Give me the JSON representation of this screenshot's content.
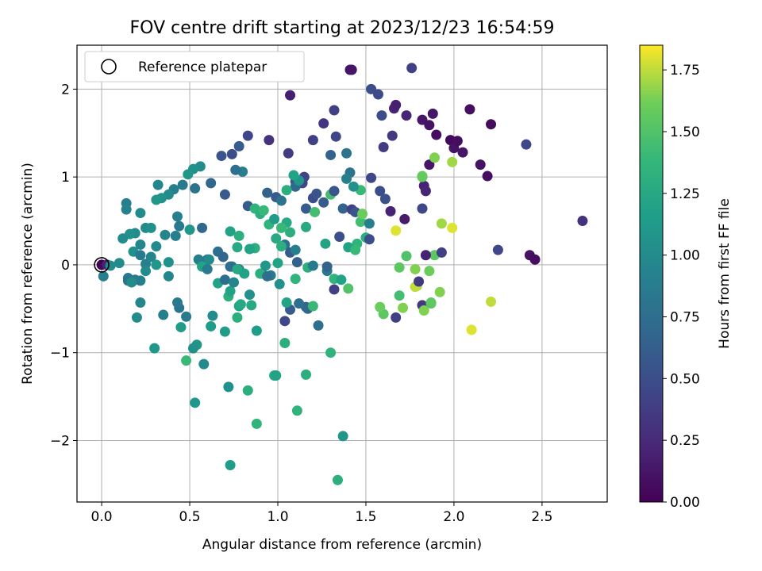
{
  "chart_data": {
    "type": "scatter",
    "title": "FOV centre drift starting at 2023/12/23 16:54:59",
    "xlabel": "Angular distance from reference (arcmin)",
    "ylabel": "Rotation from reference (arcmin)",
    "xlim": [
      -0.14,
      2.87
    ],
    "ylim": [
      -2.7,
      2.5
    ],
    "x_ticks": [
      "0.0",
      "0.5",
      "1.0",
      "1.5",
      "2.0",
      "2.5"
    ],
    "y_ticks": [
      "−2",
      "−1",
      "0",
      "1",
      "2"
    ],
    "grid": true,
    "legend": {
      "entries": [
        "Reference platepar"
      ],
      "position": "top-left"
    },
    "reference_point": {
      "x": 0.0,
      "y": 0.0
    },
    "colorbar": {
      "label": "Hours from first FF file",
      "range": [
        0.0,
        1.85
      ],
      "ticks": [
        "0.00",
        "0.25",
        "0.50",
        "0.75",
        "1.00",
        "1.25",
        "1.50",
        "1.75"
      ],
      "colormap": "viridis"
    },
    "points": [
      [
        0.0,
        0.0,
        0.0
      ],
      [
        1.41,
        2.22,
        0.1
      ],
      [
        1.42,
        2.22,
        0.12
      ],
      [
        1.07,
        1.93,
        0.18
      ],
      [
        1.76,
        2.24,
        0.4
      ],
      [
        1.53,
        2.0,
        0.5
      ],
      [
        1.57,
        1.94,
        0.48
      ],
      [
        1.66,
        1.78,
        0.2
      ],
      [
        1.67,
        1.82,
        0.18
      ],
      [
        1.73,
        1.7,
        0.22
      ],
      [
        1.82,
        1.65,
        0.12
      ],
      [
        1.86,
        1.59,
        0.1
      ],
      [
        1.88,
        1.72,
        0.13
      ],
      [
        1.9,
        1.48,
        0.08
      ],
      [
        1.98,
        1.42,
        0.05
      ],
      [
        2.0,
        1.33,
        0.1
      ],
      [
        2.02,
        1.41,
        0.07
      ],
      [
        2.05,
        1.28,
        0.12
      ],
      [
        2.09,
        1.77,
        0.08
      ],
      [
        2.15,
        1.14,
        0.1
      ],
      [
        2.19,
        1.01,
        0.08
      ],
      [
        2.21,
        1.6,
        0.06
      ],
      [
        1.86,
        1.14,
        0.12
      ],
      [
        1.83,
        0.9,
        0.2
      ],
      [
        1.84,
        0.84,
        0.22
      ],
      [
        1.64,
        0.61,
        0.2
      ],
      [
        1.72,
        0.52,
        0.15
      ],
      [
        1.82,
        0.64,
        0.45
      ],
      [
        1.59,
        1.7,
        0.5
      ],
      [
        1.6,
        1.34,
        0.38
      ],
      [
        1.65,
        1.47,
        0.35
      ],
      [
        1.53,
        0.99,
        0.45
      ],
      [
        1.58,
        0.84,
        0.5
      ],
      [
        1.61,
        0.75,
        0.52
      ],
      [
        1.39,
        1.27,
        0.8
      ],
      [
        1.33,
        1.46,
        0.45
      ],
      [
        1.32,
        1.76,
        0.4
      ],
      [
        1.3,
        1.25,
        0.65
      ],
      [
        1.2,
        1.42,
        0.4
      ],
      [
        1.26,
        1.61,
        0.32
      ],
      [
        1.15,
        1.0,
        0.42
      ],
      [
        1.14,
        0.93,
        0.45
      ],
      [
        1.06,
        1.27,
        0.38
      ],
      [
        1.1,
        0.95,
        0.55
      ],
      [
        0.95,
        1.42,
        0.3
      ],
      [
        0.83,
        1.47,
        0.45
      ],
      [
        0.78,
        1.35,
        0.6
      ],
      [
        0.74,
        1.26,
        0.5
      ],
      [
        0.68,
        1.24,
        0.55
      ],
      [
        0.8,
        1.06,
        0.9
      ],
      [
        0.76,
        1.08,
        0.75
      ],
      [
        0.7,
        0.8,
        0.6
      ],
      [
        0.62,
        0.93,
        0.7
      ],
      [
        0.56,
        1.12,
        1.0
      ],
      [
        0.52,
        1.09,
        1.05
      ],
      [
        0.49,
        1.03,
        1.1
      ],
      [
        0.53,
        0.87,
        0.8
      ],
      [
        0.46,
        0.91,
        0.85
      ],
      [
        0.41,
        0.86,
        0.9
      ],
      [
        0.38,
        0.8,
        1.0
      ],
      [
        0.34,
        0.76,
        1.05
      ],
      [
        0.31,
        0.74,
        1.1
      ],
      [
        0.32,
        0.91,
        0.95
      ],
      [
        0.25,
        0.42,
        1.0
      ],
      [
        0.28,
        0.42,
        1.05
      ],
      [
        0.22,
        0.59,
        1.0
      ],
      [
        0.14,
        0.7,
        0.9
      ],
      [
        0.14,
        0.63,
        0.92
      ],
      [
        0.19,
        0.36,
        1.0
      ],
      [
        0.16,
        0.35,
        1.05
      ],
      [
        0.12,
        0.3,
        1.0
      ],
      [
        0.18,
        0.15,
        1.05
      ],
      [
        0.22,
        0.23,
        0.95
      ],
      [
        0.22,
        0.11,
        0.85
      ],
      [
        0.25,
        0.01,
        0.9
      ],
      [
        0.28,
        0.09,
        0.95
      ],
      [
        0.31,
        0.21,
        1.0
      ],
      [
        0.36,
        0.34,
        0.95
      ],
      [
        0.42,
        0.33,
        0.9
      ],
      [
        0.44,
        0.44,
        0.85
      ],
      [
        0.43,
        0.55,
        0.9
      ],
      [
        0.5,
        0.4,
        1.1
      ],
      [
        0.57,
        0.42,
        0.7
      ],
      [
        0.6,
        0.06,
        0.8
      ],
      [
        0.55,
        0.06,
        0.9
      ],
      [
        0.57,
        -0.02,
        1.2
      ],
      [
        0.66,
        0.15,
        0.75
      ],
      [
        0.69,
        0.09,
        0.7
      ],
      [
        0.73,
        -0.02,
        0.7
      ],
      [
        0.78,
        -0.05,
        0.9
      ],
      [
        0.73,
        0.38,
        1.2
      ],
      [
        0.78,
        0.33,
        1.3
      ],
      [
        0.77,
        0.2,
        1.25
      ],
      [
        0.87,
        0.19,
        1.3
      ],
      [
        0.84,
        0.18,
        1.2
      ],
      [
        0.83,
        0.67,
        0.6
      ],
      [
        0.87,
        0.64,
        1.35
      ],
      [
        0.9,
        0.58,
        1.3
      ],
      [
        0.92,
        0.62,
        1.4
      ],
      [
        0.95,
        0.46,
        1.35
      ],
      [
        0.94,
        0.82,
        0.65
      ],
      [
        0.99,
        0.77,
        0.6
      ],
      [
        1.02,
        0.73,
        0.8
      ],
      [
        1.05,
        0.48,
        1.25
      ],
      [
        1.07,
        0.37,
        1.3
      ],
      [
        1.02,
        0.42,
        1.4
      ],
      [
        0.98,
        0.52,
        1.15
      ],
      [
        0.99,
        0.3,
        1.25
      ],
      [
        1.04,
        0.23,
        0.75
      ],
      [
        1.07,
        0.14,
        0.6
      ],
      [
        1.11,
        0.03,
        0.65
      ],
      [
        1.1,
        0.89,
        0.7
      ],
      [
        1.12,
        0.96,
        1.1
      ],
      [
        1.09,
        1.02,
        1.2
      ],
      [
        1.05,
        0.85,
        1.3
      ],
      [
        1.16,
        0.64,
        0.6
      ],
      [
        1.2,
        0.76,
        0.5
      ],
      [
        1.22,
        0.81,
        0.55
      ],
      [
        1.26,
        0.71,
        0.6
      ],
      [
        1.3,
        0.8,
        1.45
      ],
      [
        1.32,
        0.84,
        0.55
      ],
      [
        1.37,
        0.64,
        0.65
      ],
      [
        1.42,
        0.63,
        0.4
      ],
      [
        1.41,
        1.05,
        0.8
      ],
      [
        1.39,
        0.98,
        0.9
      ],
      [
        1.44,
        0.6,
        0.55
      ],
      [
        1.47,
        0.49,
        1.45
      ],
      [
        1.52,
        0.47,
        0.9
      ],
      [
        1.47,
        0.85,
        1.4
      ],
      [
        1.43,
        0.89,
        1.05
      ],
      [
        1.48,
        0.58,
        1.6
      ],
      [
        1.5,
        0.31,
        1.3
      ],
      [
        1.52,
        0.29,
        0.5
      ],
      [
        1.45,
        0.24,
        1.35
      ],
      [
        1.4,
        0.2,
        1.2
      ],
      [
        1.35,
        0.32,
        0.5
      ],
      [
        1.27,
        0.24,
        1.2
      ],
      [
        1.21,
        0.6,
        1.45
      ],
      [
        1.16,
        0.43,
        1.25
      ],
      [
        1.1,
        0.17,
        0.9
      ],
      [
        1.02,
        0.21,
        1.3
      ],
      [
        1.0,
        0.02,
        1.2
      ],
      [
        0.93,
        -0.01,
        1.1
      ],
      [
        0.91,
        -0.1,
        0.95
      ],
      [
        0.96,
        -0.12,
        0.85
      ],
      [
        1.01,
        -0.22,
        1.05
      ],
      [
        1.1,
        -0.16,
        1.35
      ],
      [
        1.17,
        -0.03,
        1.3
      ],
      [
        1.2,
        -0.01,
        0.85
      ],
      [
        1.28,
        -0.07,
        0.85
      ],
      [
        1.32,
        -0.16,
        1.35
      ],
      [
        1.36,
        -0.17,
        1.2
      ],
      [
        1.4,
        -0.27,
        1.5
      ],
      [
        1.32,
        -0.28,
        0.4
      ],
      [
        1.44,
        0.17,
        1.4
      ],
      [
        1.6,
        -0.56,
        1.55
      ],
      [
        1.58,
        -0.48,
        1.6
      ],
      [
        1.67,
        -0.6,
        0.4
      ],
      [
        1.69,
        -0.35,
        1.45
      ],
      [
        1.71,
        -0.49,
        1.65
      ],
      [
        1.73,
        0.1,
        1.5
      ],
      [
        1.69,
        -0.03,
        1.55
      ],
      [
        1.78,
        -0.05,
        1.65
      ],
      [
        1.79,
        -0.24,
        1.7
      ],
      [
        1.78,
        -0.25,
        1.75
      ],
      [
        1.8,
        -0.19,
        0.35
      ],
      [
        1.82,
        -0.46,
        0.35
      ],
      [
        1.83,
        -0.52,
        1.65
      ],
      [
        1.86,
        -0.07,
        1.6
      ],
      [
        1.87,
        -0.44,
        1.5
      ],
      [
        1.87,
        -0.43,
        1.55
      ],
      [
        1.89,
        0.11,
        1.55
      ],
      [
        1.92,
        -0.31,
        1.65
      ],
      [
        1.93,
        0.47,
        1.7
      ],
      [
        1.89,
        1.22,
        1.65
      ],
      [
        1.82,
        1.01,
        1.6
      ],
      [
        1.82,
        1.0,
        1.58
      ],
      [
        1.99,
        1.17,
        1.7
      ],
      [
        1.99,
        0.42,
        1.8
      ],
      [
        1.67,
        0.39,
        1.8
      ],
      [
        1.84,
        0.11,
        0.2
      ],
      [
        1.93,
        0.14,
        0.4
      ],
      [
        2.21,
        -0.42,
        1.75
      ],
      [
        2.1,
        -0.74,
        1.8
      ],
      [
        2.25,
        0.17,
        0.45
      ],
      [
        2.41,
        1.37,
        0.45
      ],
      [
        2.43,
        0.11,
        0.1
      ],
      [
        2.46,
        0.06,
        0.08
      ],
      [
        2.73,
        0.5,
        0.3
      ],
      [
        1.37,
        -1.95,
        1.1
      ],
      [
        1.34,
        -2.45,
        1.3
      ],
      [
        1.23,
        -0.69,
        0.75
      ],
      [
        1.16,
        -0.48,
        0.65
      ],
      [
        1.17,
        -0.5,
        0.7
      ],
      [
        1.2,
        -0.47,
        1.4
      ],
      [
        1.12,
        -0.44,
        0.75
      ],
      [
        1.07,
        -0.51,
        0.6
      ],
      [
        1.05,
        -0.43,
        1.2
      ],
      [
        1.04,
        -0.64,
        0.45
      ],
      [
        1.04,
        -0.89,
        1.3
      ],
      [
        0.98,
        -1.26,
        1.25
      ],
      [
        0.99,
        -1.26,
        1.2
      ],
      [
        1.16,
        -1.25,
        1.3
      ],
      [
        1.11,
        -1.66,
        1.35
      ],
      [
        1.3,
        -1.0,
        1.35
      ],
      [
        0.88,
        -0.75,
        1.15
      ],
      [
        0.85,
        -0.46,
        1.25
      ],
      [
        0.84,
        -0.34,
        1.05
      ],
      [
        0.78,
        -0.47,
        1.2
      ],
      [
        0.79,
        -0.45,
        1.25
      ],
      [
        0.72,
        -0.36,
        1.3
      ],
      [
        0.73,
        -0.3,
        1.2
      ],
      [
        0.77,
        -0.6,
        1.3
      ],
      [
        0.7,
        -0.76,
        1.15
      ],
      [
        0.62,
        -0.7,
        1.15
      ],
      [
        0.63,
        -0.58,
        1.0
      ],
      [
        0.58,
        -1.13,
        1.0
      ],
      [
        0.54,
        -0.91,
        1.1
      ],
      [
        0.52,
        -0.95,
        1.05
      ],
      [
        0.48,
        -1.09,
        1.4
      ],
      [
        0.53,
        -1.57,
        1.1
      ],
      [
        0.45,
        -0.71,
        1.15
      ],
      [
        0.44,
        -0.49,
        0.8
      ],
      [
        0.43,
        -0.43,
        0.85
      ],
      [
        0.48,
        -0.59,
        0.85
      ],
      [
        0.35,
        -0.57,
        0.9
      ],
      [
        0.3,
        -0.95,
        1.1
      ],
      [
        0.22,
        -0.43,
        0.95
      ],
      [
        0.22,
        -0.18,
        0.9
      ],
      [
        0.19,
        -0.17,
        0.85
      ],
      [
        0.15,
        -0.15,
        0.85
      ],
      [
        0.15,
        -0.18,
        0.8
      ],
      [
        0.17,
        -0.2,
        1.0
      ],
      [
        0.2,
        -0.6,
        1.0
      ],
      [
        0.25,
        -0.07,
        1.0
      ],
      [
        0.31,
        0.0,
        1.1
      ],
      [
        0.38,
        0.03,
        1.05
      ],
      [
        0.38,
        -0.13,
        0.95
      ],
      [
        0.6,
        -0.05,
        0.85
      ],
      [
        0.61,
        0.06,
        1.0
      ],
      [
        0.66,
        -0.21,
        1.2
      ],
      [
        0.7,
        -0.17,
        0.75
      ],
      [
        0.74,
        -0.02,
        0.75
      ],
      [
        0.75,
        -0.2,
        0.95
      ],
      [
        0.77,
        -0.05,
        1.25
      ],
      [
        0.81,
        -0.1,
        1.2
      ],
      [
        0.9,
        -0.1,
        1.3
      ],
      [
        0.94,
        -0.13,
        0.75
      ],
      [
        1.28,
        -0.02,
        0.65
      ],
      [
        0.72,
        -1.39,
        1.05
      ],
      [
        0.83,
        -1.43,
        1.3
      ],
      [
        0.88,
        -1.81,
        1.35
      ],
      [
        0.73,
        -2.28,
        1.15
      ],
      [
        0.03,
        0.0,
        0.2
      ],
      [
        0.05,
        -0.01,
        1.0
      ],
      [
        0.1,
        0.02,
        1.0
      ],
      [
        0.01,
        -0.13,
        0.9
      ]
    ]
  }
}
